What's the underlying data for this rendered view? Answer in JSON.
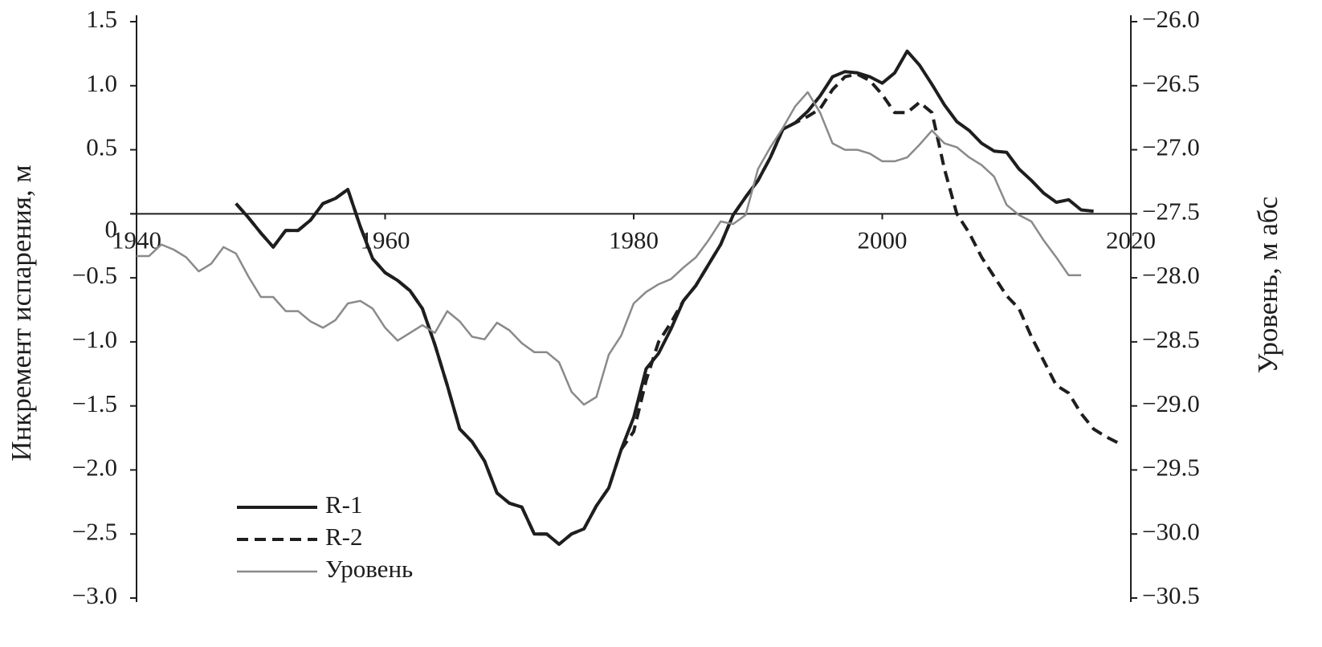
{
  "chart_data": {
    "type": "line",
    "ylabel": "Инкремент испарения, м",
    "y2label": "Уровень, м абс",
    "xlim": [
      1940,
      2020
    ],
    "xticks": [
      1940,
      1960,
      1980,
      2000,
      2020
    ],
    "ylim": [
      -3,
      1.5
    ],
    "yticks": [
      1.5,
      {
        "value": 1,
        "label": "1.0"
      },
      0.5,
      0,
      {
        "value": -0.5,
        "label": "−0.5"
      },
      {
        "value": -1,
        "label": "−1.0"
      },
      {
        "value": -1.5,
        "label": "−1.5"
      },
      {
        "value": -2,
        "label": "−2.0"
      },
      {
        "value": -2.5,
        "label": "−2.5"
      },
      {
        "value": -3,
        "label": "−3.0"
      }
    ],
    "y2lim": [
      -30.5,
      -26
    ],
    "y2ticks": [
      {
        "value": -26,
        "label": "−26.0"
      },
      {
        "value": -26.5,
        "label": "−26.5"
      },
      {
        "value": -27,
        "label": "−27.0"
      },
      {
        "value": -27.5,
        "label": "−27.5"
      },
      {
        "value": -28,
        "label": "−28.0"
      },
      {
        "value": -28.5,
        "label": "−28.5"
      },
      {
        "value": -29,
        "label": "−29.0"
      },
      {
        "value": -29.5,
        "label": "−29.5"
      },
      {
        "value": -30,
        "label": "−30.0"
      },
      {
        "value": -30.5,
        "label": "−30.5"
      }
    ],
    "legend": "lower left",
    "x": [
      1940,
      1941,
      1942,
      1943,
      1944,
      1945,
      1946,
      1947,
      1948,
      1949,
      1950,
      1951,
      1952,
      1953,
      1954,
      1955,
      1956,
      1957,
      1958,
      1959,
      1960,
      1961,
      1962,
      1963,
      1964,
      1965,
      1966,
      1967,
      1968,
      1969,
      1970,
      1971,
      1972,
      1973,
      1974,
      1975,
      1976,
      1977,
      1978,
      1979,
      1980,
      1981,
      1982,
      1983,
      1984,
      1985,
      1986,
      1987,
      1988,
      1989,
      1990,
      1991,
      1992,
      1993,
      1994,
      1995,
      1996,
      1997,
      1998,
      1999,
      2000,
      2001,
      2002,
      2003,
      2004,
      2005,
      2006,
      2007,
      2008,
      2009,
      2010,
      2011,
      2012,
      2013,
      2014,
      2015,
      2016,
      2017,
      2018,
      2019
    ],
    "series": [
      {
        "name": "R-1",
        "color": "#1e1e1e",
        "line_style": "solid",
        "values": [
          null,
          null,
          null,
          null,
          null,
          null,
          null,
          null,
          0.08,
          -0.03,
          -0.15,
          -0.26,
          -0.13,
          -0.13,
          -0.05,
          0.08,
          0.12,
          0.19,
          -0.1,
          -0.35,
          -0.46,
          -0.52,
          -0.6,
          -0.74,
          -1.02,
          -1.34,
          -1.68,
          -1.78,
          -1.93,
          -2.18,
          -2.26,
          -2.29,
          -2.5,
          -2.5,
          -2.58,
          -2.5,
          -2.46,
          -2.28,
          -2.14,
          -1.84,
          -1.59,
          -1.21,
          -1.09,
          -0.9,
          -0.68,
          -0.56,
          -0.4,
          -0.24,
          -0.01,
          0.13,
          0.26,
          0.44,
          0.66,
          0.71,
          0.8,
          0.92,
          1.07,
          1.11,
          1.1,
          1.07,
          1.02,
          1.1,
          1.27,
          1.16,
          1.01,
          0.85,
          0.72,
          0.65,
          0.55,
          0.49,
          0.48,
          0.35,
          0.26,
          0.16,
          0.09,
          0.11,
          0.03,
          0.02,
          null,
          null
        ]
      },
      {
        "name": "R-2",
        "color": "#1e1e1e",
        "line_style": "dashed",
        "values": [
          null,
          null,
          null,
          null,
          null,
          null,
          null,
          null,
          0.08,
          -0.03,
          -0.15,
          -0.26,
          -0.13,
          -0.13,
          -0.05,
          0.08,
          0.12,
          0.19,
          -0.1,
          -0.35,
          -0.46,
          -0.52,
          -0.6,
          -0.74,
          -1.02,
          -1.34,
          -1.68,
          -1.78,
          -1.93,
          -2.18,
          -2.26,
          -2.29,
          -2.5,
          -2.5,
          -2.58,
          -2.5,
          -2.46,
          -2.28,
          -2.14,
          -1.84,
          -1.7,
          -1.3,
          -1.0,
          -0.85,
          -0.68,
          -0.56,
          -0.4,
          -0.24,
          -0.01,
          0.13,
          0.26,
          0.44,
          0.66,
          0.71,
          0.76,
          0.82,
          0.97,
          1.07,
          1.09,
          1.04,
          0.93,
          0.79,
          0.79,
          0.87,
          0.79,
          0.35,
          0.0,
          -0.15,
          -0.34,
          -0.49,
          -0.64,
          -0.74,
          -0.96,
          -1.15,
          -1.34,
          -1.4,
          -1.56,
          -1.68,
          -1.74,
          -1.79
        ]
      },
      {
        "name": "Уровень",
        "color": "#8a8a8a",
        "line_style": "solid",
        "axis": "y2",
        "values": [
          -27.83,
          -27.83,
          -27.74,
          -27.78,
          -27.84,
          -27.95,
          -27.89,
          -27.76,
          -27.81,
          -27.99,
          -28.15,
          -28.15,
          -28.26,
          -28.26,
          -28.34,
          -28.39,
          -28.33,
          -28.2,
          -28.18,
          -28.24,
          -28.39,
          -28.49,
          -28.43,
          -28.37,
          -28.43,
          -28.26,
          -28.34,
          -28.46,
          -28.48,
          -28.35,
          -28.41,
          -28.51,
          -28.58,
          -28.58,
          -28.66,
          -28.89,
          -28.99,
          -28.93,
          -28.6,
          -28.45,
          -28.2,
          -28.11,
          -28.05,
          -28.01,
          -27.92,
          -27.84,
          -27.71,
          -27.56,
          -27.58,
          -27.51,
          -27.15,
          -26.98,
          -26.83,
          -26.66,
          -26.55,
          -26.71,
          -26.95,
          -27.0,
          -27.0,
          -27.03,
          -27.09,
          -27.09,
          -27.06,
          -26.96,
          -26.85,
          -26.95,
          -26.98,
          -27.06,
          -27.12,
          -27.21,
          -27.43,
          -27.51,
          -27.56,
          -27.71,
          -27.84,
          -27.98,
          -27.98,
          null,
          null,
          null
        ]
      }
    ]
  }
}
